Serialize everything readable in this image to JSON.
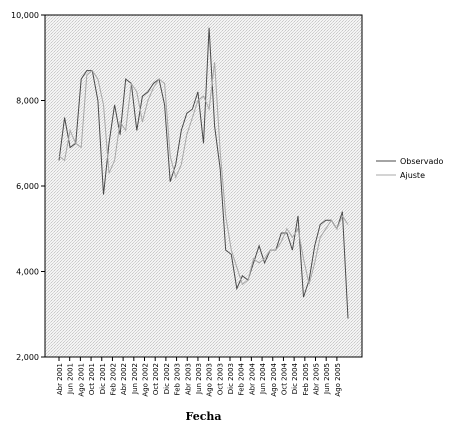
{
  "chart_data": {
    "type": "line",
    "title": "",
    "xlabel": "Fecha",
    "ylabel": "",
    "ylim": [
      2000,
      10000
    ],
    "yticks": [
      2000,
      4000,
      6000,
      8000,
      10000
    ],
    "ytick_labels": [
      "2,000",
      "4,000",
      "6,000",
      "8,000",
      "10,000"
    ],
    "grid": false,
    "background": "hatched-gray",
    "legend_position": "right",
    "x_tick_labels": [
      "Abr 2001",
      "Jun 2001",
      "Ago 2001",
      "Oct 2001",
      "Dic 2001",
      "Feb 2002",
      "Abr 2002",
      "Jun 2002",
      "Ago 2002",
      "Oct 2002",
      "Dic 2002",
      "Feb 2003",
      "Abr 2003",
      "Jun 2003",
      "Ago 2003",
      "Oct 2003",
      "Dic 2003",
      "Feb 2004",
      "Abr 2004",
      "Jun 2004",
      "Ago 2004",
      "Oct 2004",
      "Dic 2004",
      "Feb 2005",
      "Abr 2005",
      "Jun 2005",
      "Ago 2005"
    ],
    "series": [
      {
        "name": "Observado",
        "color": "#4a4a4a",
        "values": [
          6600,
          7600,
          6900,
          7000,
          8500,
          8700,
          8700,
          8000,
          5800,
          7000,
          7900,
          7200,
          8500,
          8400,
          7300,
          8100,
          8200,
          8400,
          8500,
          7900,
          6100,
          6500,
          7300,
          7700,
          7800,
          8200,
          7000,
          9700,
          7400,
          6400,
          4500,
          4400,
          3600,
          3900,
          3800,
          4200,
          4600,
          4200,
          4500,
          4500,
          4900,
          4900,
          4500,
          5300,
          3400,
          3800,
          4600,
          5100,
          5200,
          5200,
          5000,
          5400,
          2900
        ]
      },
      {
        "name": "Ajuste",
        "color": "#a8a8a8",
        "values": [
          6700,
          6600,
          7300,
          7000,
          6900,
          8600,
          8700,
          8500,
          7900,
          6300,
          6600,
          7500,
          7300,
          8400,
          8200,
          7500,
          8000,
          8300,
          8500,
          8400,
          6700,
          6200,
          6500,
          7200,
          7600,
          8000,
          8100,
          7800,
          8900,
          6800,
          5300,
          4500,
          4100,
          3700,
          3800,
          4300,
          4200,
          4300,
          4500,
          4500,
          4700,
          5000,
          4800,
          5000,
          4300,
          3700,
          4200,
          4800,
          5000,
          5200,
          5000,
          5300,
          5100
        ]
      }
    ]
  }
}
